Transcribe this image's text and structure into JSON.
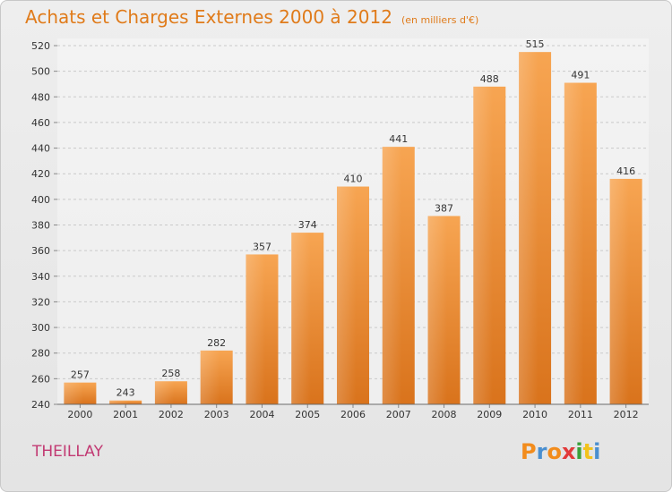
{
  "header": {
    "title": "Achats et Charges Externes 2000 à 2012",
    "subtitle": "(en milliers d'€)"
  },
  "footer": {
    "commune": "THEILLAY",
    "logo_letters": [
      "P",
      "r",
      "o",
      "x",
      "i",
      "t",
      "i"
    ],
    "logo_colors": [
      "#f28c1c",
      "#4a8fd0",
      "#f28c1c",
      "#e23a3a",
      "#3aa03a",
      "#f2c21c",
      "#4a8fd0"
    ]
  },
  "colors": {
    "bar_top": "#f7a552",
    "bar_bottom": "#d9731c",
    "accent": "#e07b1a"
  },
  "chart_data": {
    "type": "bar",
    "title": "Achats et Charges Externes 2000 à 2012",
    "subtitle": "(en milliers d'€)",
    "categories": [
      "2000",
      "2001",
      "2002",
      "2003",
      "2004",
      "2005",
      "2006",
      "2007",
      "2008",
      "2009",
      "2010",
      "2011",
      "2012"
    ],
    "values": [
      257,
      243,
      258,
      282,
      357,
      374,
      410,
      441,
      387,
      488,
      515,
      491,
      416
    ],
    "ylim": [
      240,
      520
    ],
    "yticks": [
      240,
      260,
      280,
      300,
      320,
      340,
      360,
      380,
      400,
      420,
      440,
      460,
      480,
      500,
      520
    ],
    "grid": true,
    "xlabel": "",
    "ylabel": ""
  }
}
